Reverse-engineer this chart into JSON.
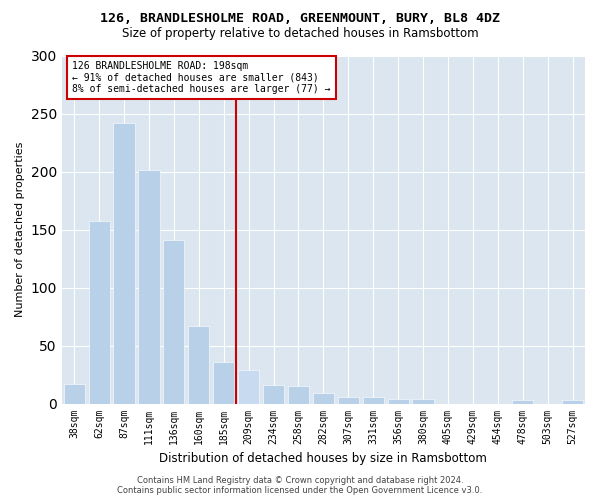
{
  "title": "126, BRANDLESHOLME ROAD, GREENMOUNT, BURY, BL8 4DZ",
  "subtitle": "Size of property relative to detached houses in Ramsbottom",
  "xlabel": "Distribution of detached houses by size in Ramsbottom",
  "ylabel": "Number of detached properties",
  "bins": [
    "38sqm",
    "62sqm",
    "87sqm",
    "111sqm",
    "136sqm",
    "160sqm",
    "185sqm",
    "209sqm",
    "234sqm",
    "258sqm",
    "282sqm",
    "307sqm",
    "331sqm",
    "356sqm",
    "380sqm",
    "405sqm",
    "429sqm",
    "454sqm",
    "478sqm",
    "503sqm",
    "527sqm"
  ],
  "values": [
    17,
    157,
    242,
    201,
    141,
    67,
    36,
    29,
    16,
    15,
    9,
    6,
    6,
    4,
    4,
    0,
    0,
    0,
    3,
    0,
    3
  ],
  "highlight_index": 7,
  "bar_color": "#b8d0e8",
  "highlight_bar_color": "#c8daf0",
  "vline_color": "#cc0000",
  "annotation_text": "126 BRANDLESHOLME ROAD: 198sqm\n← 91% of detached houses are smaller (843)\n8% of semi-detached houses are larger (77) →",
  "annotation_box_color": "#ffffff",
  "annotation_box_edge": "#cc0000",
  "footer": "Contains HM Land Registry data © Crown copyright and database right 2024.\nContains public sector information licensed under the Open Government Licence v3.0.",
  "ylim": [
    0,
    300
  ],
  "bg_color": "#ffffff",
  "plot_bg_color": "#dce6f0",
  "grid_color": "#ffffff",
  "title_fontsize": 9.5,
  "subtitle_fontsize": 8.5,
  "ylabel_fontsize": 8,
  "xlabel_fontsize": 8.5,
  "tick_fontsize": 7,
  "annotation_fontsize": 7,
  "footer_fontsize": 6
}
